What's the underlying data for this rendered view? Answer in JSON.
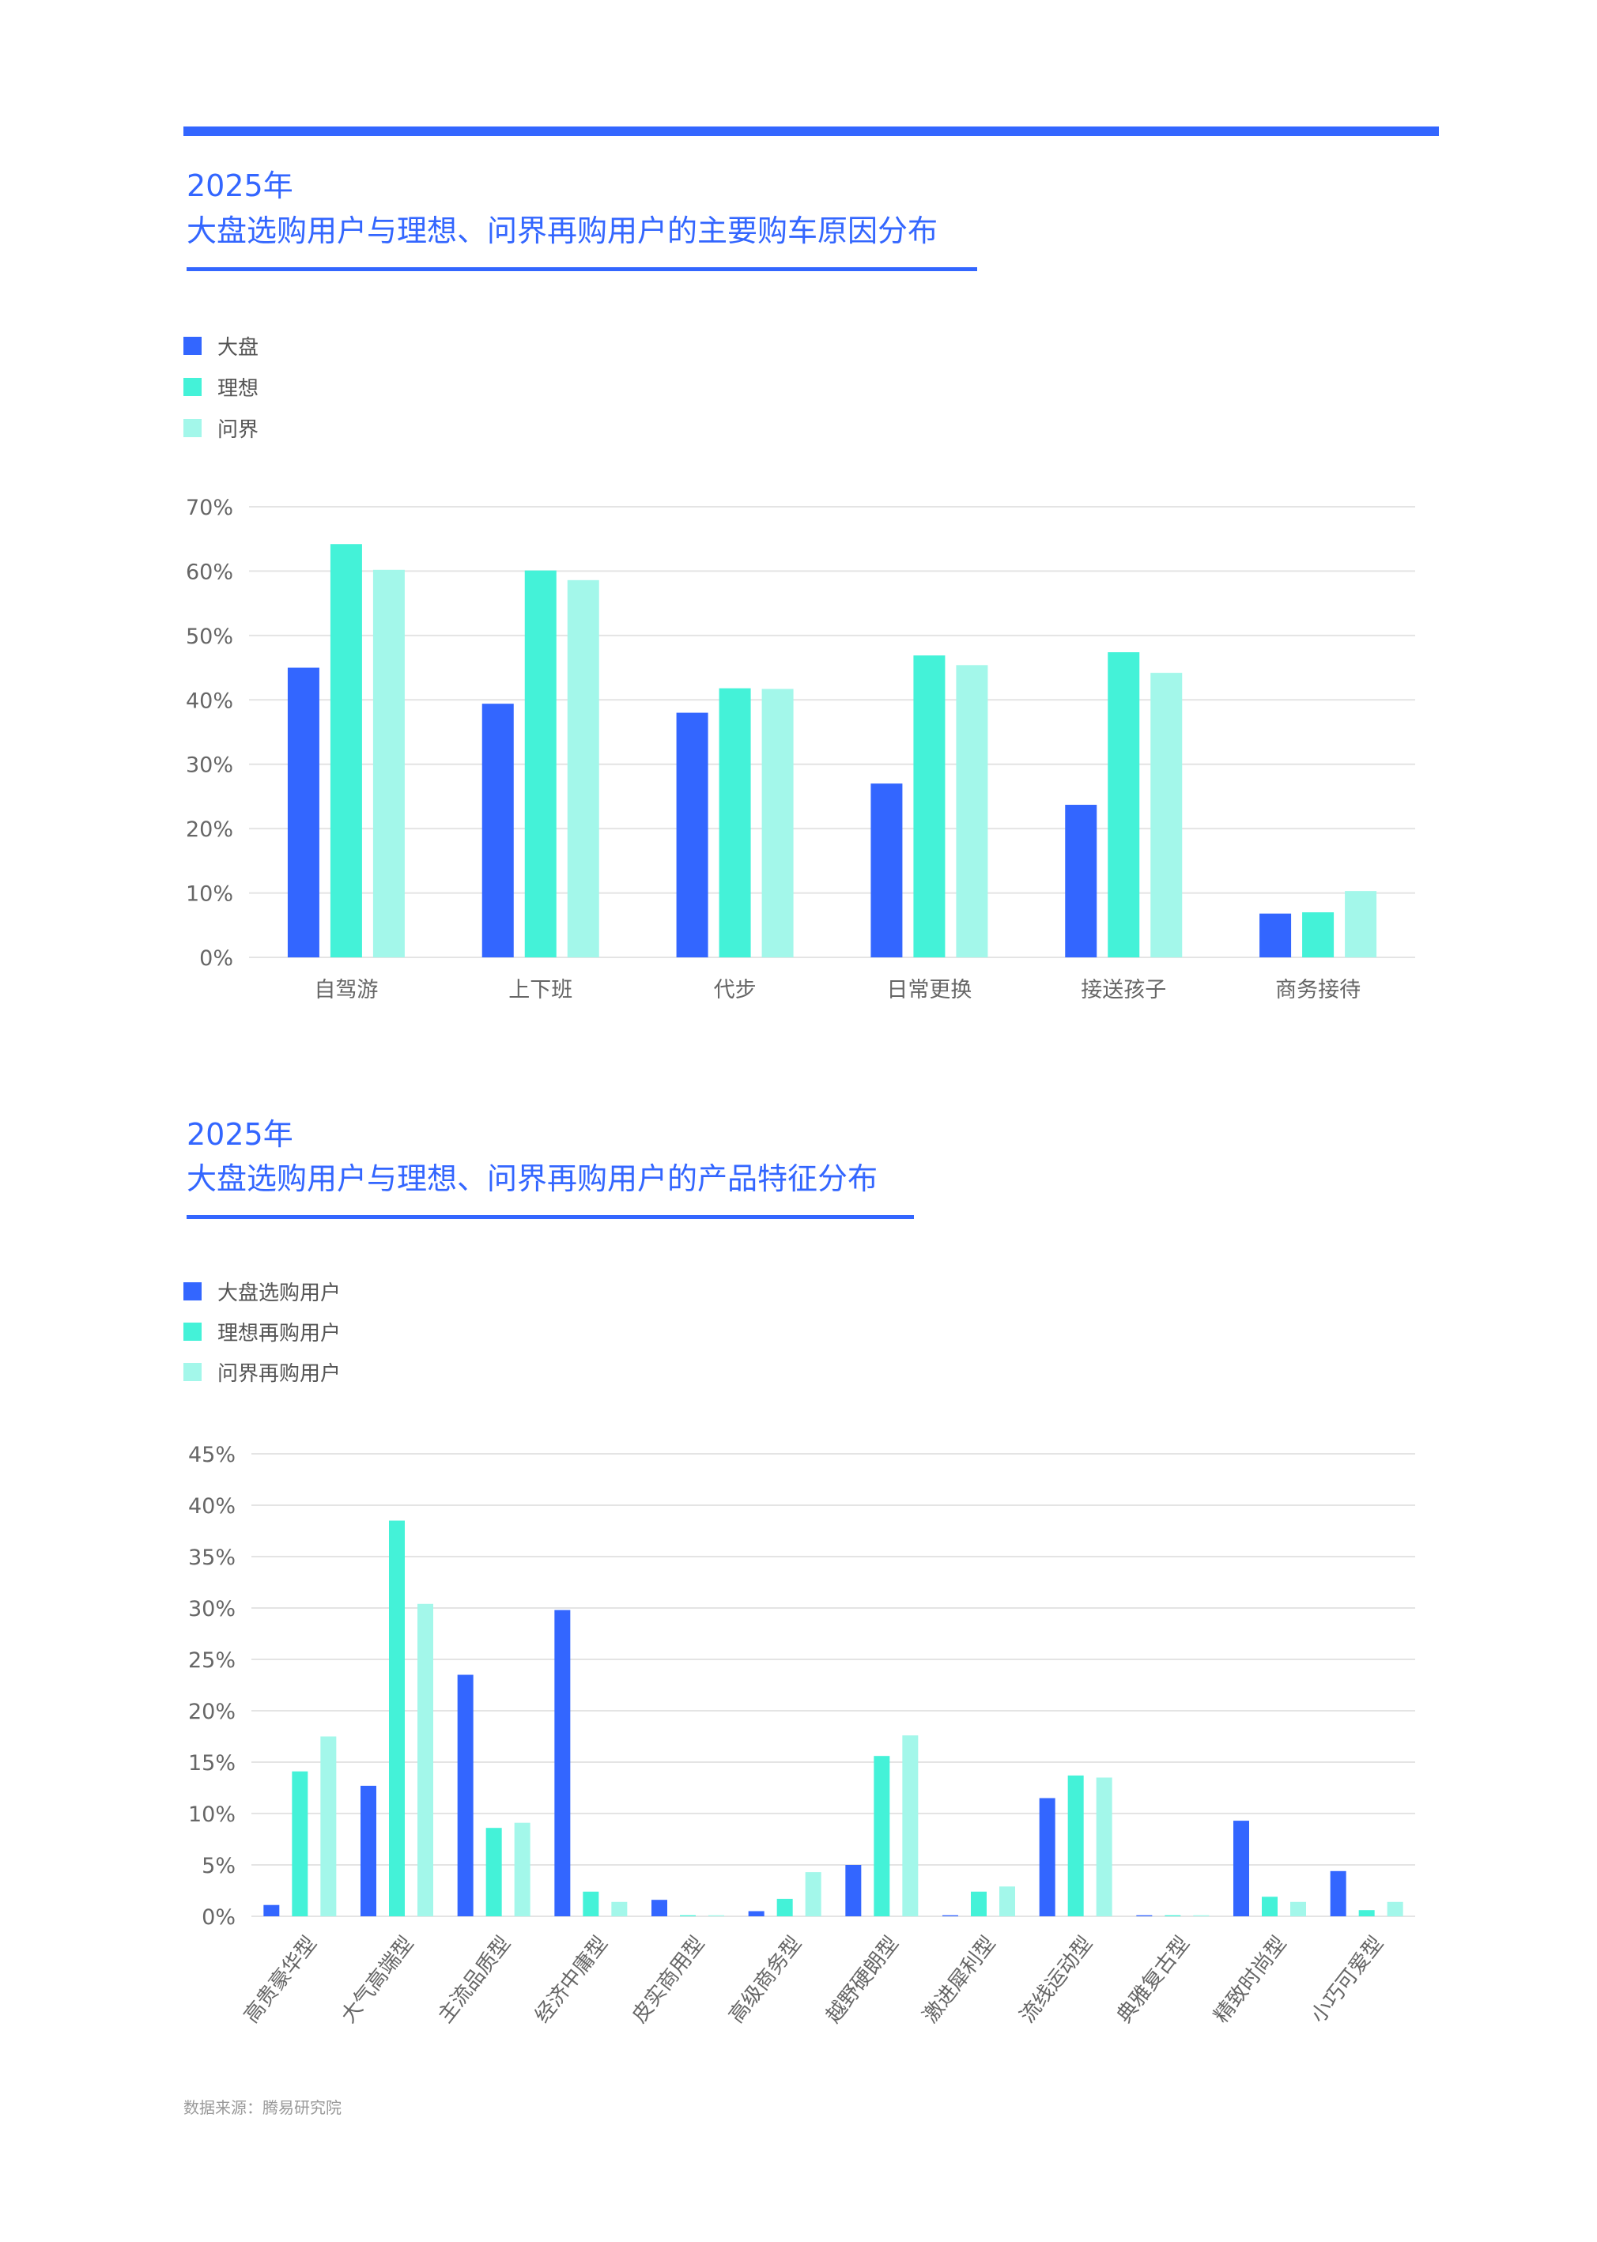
{
  "colors": {
    "accent": "#3366ff",
    "series": [
      "#3366ff",
      "#44f2d8",
      "#a3f7ea"
    ],
    "grid": "#e4e4e4"
  },
  "chart_data": [
    {
      "type": "bar",
      "title_year": "2025年",
      "title": "大盘选购用户与理想、问界再购用户的主要购车原因分布",
      "categories": [
        "自驾游",
        "上下班",
        "代步",
        "日常更换",
        "接送孩子",
        "商务接待"
      ],
      "series": [
        {
          "name": "大盘",
          "values": [
            45.0,
            39.4,
            38.0,
            27.0,
            23.7,
            6.8
          ]
        },
        {
          "name": "理想",
          "values": [
            64.2,
            60.1,
            41.8,
            46.9,
            47.4,
            7.0
          ]
        },
        {
          "name": "问界",
          "values": [
            60.2,
            58.6,
            41.7,
            45.4,
            44.2,
            10.3
          ]
        }
      ],
      "ylim": [
        0,
        70
      ],
      "yticks": [
        "0%",
        "10%",
        "20%",
        "30%",
        "40%",
        "50%",
        "60%",
        "70%"
      ],
      "grid": true,
      "legend": "top-left"
    },
    {
      "type": "bar",
      "title_year": "2025年",
      "title": "大盘选购用户与理想、问界再购用户的产品特征分布",
      "categories": [
        "高贵豪华型",
        "大气高端型",
        "主流品质型",
        "经济中庸型",
        "皮实商用型",
        "高级商务型",
        "越野硬朗型",
        "激进犀利型",
        "流线运动型",
        "典雅复古型",
        "精致时尚型",
        "小巧可爱型"
      ],
      "series": [
        {
          "name": "大盘选购用户",
          "values": [
            1.1,
            12.7,
            23.5,
            29.8,
            1.6,
            0.5,
            5.0,
            0.1,
            11.5,
            0.1,
            9.3,
            4.4
          ]
        },
        {
          "name": "理想再购用户",
          "values": [
            14.1,
            38.5,
            8.6,
            2.4,
            0.1,
            1.7,
            15.6,
            2.4,
            13.7,
            0.1,
            1.9,
            0.6
          ]
        },
        {
          "name": "问界再购用户",
          "values": [
            17.5,
            30.4,
            9.1,
            1.4,
            0.1,
            4.3,
            17.6,
            2.9,
            13.5,
            0.1,
            1.4,
            1.4
          ]
        }
      ],
      "ylim": [
        0,
        45
      ],
      "yticks": [
        "0%",
        "5%",
        "10%",
        "15%",
        "20%",
        "25%",
        "30%",
        "35%",
        "40%",
        "45%"
      ],
      "grid": true,
      "legend": "top-left"
    }
  ],
  "source": "数据来源：腾易研究院"
}
